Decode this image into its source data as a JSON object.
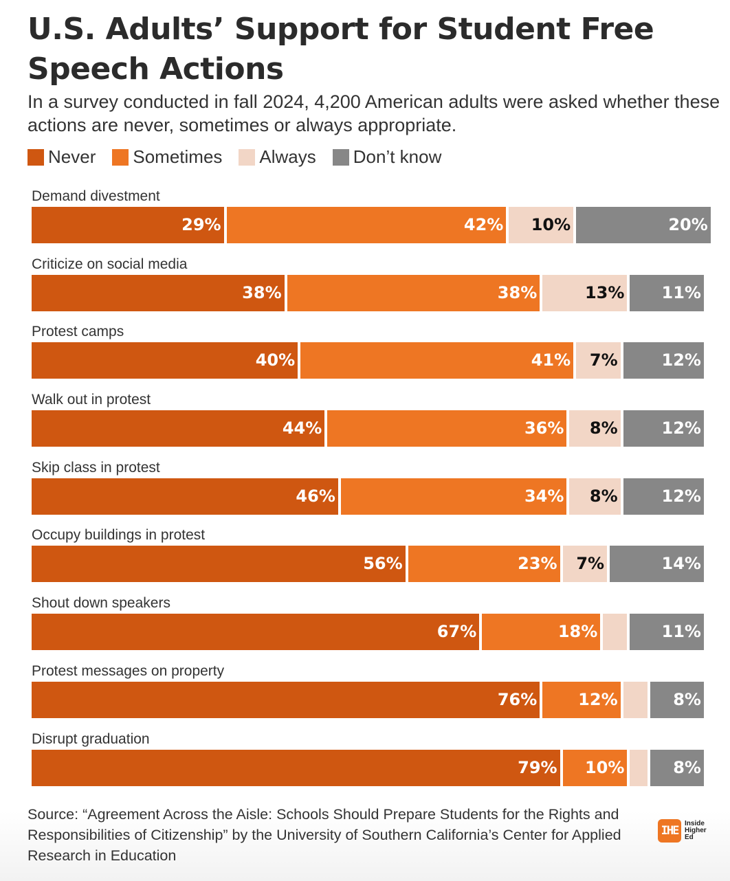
{
  "chart_data": {
    "type": "bar",
    "orientation": "horizontal",
    "stacked": true,
    "title": "U.S. Adults’ Support for Student Free Speech Actions",
    "subtitle": "In a survey conducted in fall 2024, 4,200 American adults were asked whether these actions are never, sometimes or always appropriate.",
    "categories": [
      "Demand divestment",
      "Criticize on social media",
      "Protest camps",
      "Walk out in protest",
      "Skip class in protest",
      "Occupy buildings in protest",
      "Shout down speakers",
      "Protest messages on property",
      "Disrupt graduation"
    ],
    "series": [
      {
        "name": "Never",
        "color": "#cf5711",
        "label_color": "#ffffff",
        "values": [
          29,
          38,
          40,
          44,
          46,
          56,
          67,
          76,
          79
        ]
      },
      {
        "name": "Sometimes",
        "color": "#ee7623",
        "label_color": "#ffffff",
        "values": [
          42,
          38,
          41,
          36,
          34,
          23,
          18,
          12,
          10
        ]
      },
      {
        "name": "Always",
        "color": "#f2d6c6",
        "label_color": "#111111",
        "values": [
          10,
          13,
          7,
          8,
          8,
          7,
          4,
          4,
          3
        ]
      },
      {
        "name": "Don’t know",
        "color": "#878787",
        "label_color": "#ffffff",
        "values": [
          20,
          11,
          12,
          12,
          12,
          14,
          11,
          8,
          8
        ]
      }
    ],
    "label_min_value": 5,
    "xlim": [
      0,
      100
    ],
    "legend": "top-left",
    "grid": false
  },
  "source": "Source: “Agreement Across the Aisle: Schools Should Prepare Students for the Rights and Responsibilities of Citizenship” by the University of Southern California’s Center for Applied Research in Education",
  "logo": {
    "mark": "IHE",
    "text": [
      "Inside",
      "Higher",
      "Ed"
    ]
  }
}
